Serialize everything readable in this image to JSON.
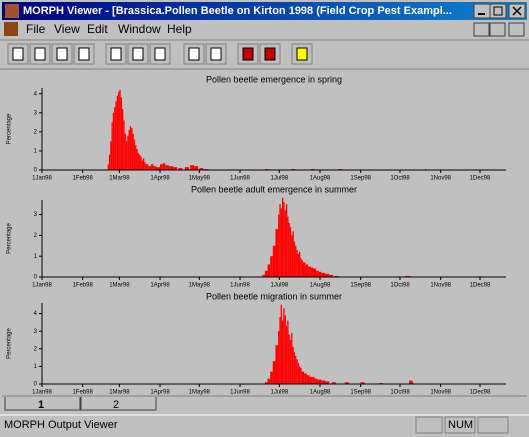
{
  "window": {
    "title": "MORPH Viewer - [Brassica.Pollen Beetle on Kirton 1998 (Field Crop Pest Exampl...",
    "menu": [
      "File",
      "View",
      "Edit",
      "Window",
      "Help"
    ],
    "tabs": [
      "1",
      "2"
    ],
    "status": {
      "text": "MORPH Output Viewer",
      "num": "NUM"
    }
  },
  "chart_data": [
    {
      "type": "bar",
      "title": "Pollen beetle emergence in spring",
      "y_label": "Percentage",
      "color": "#ff0000",
      "x": [
        "20Feb98",
        "21Feb98",
        "22Feb98",
        "23Feb98",
        "24Feb98",
        "25Feb98",
        "26Feb98",
        "27Feb98",
        "28Feb98",
        "1Mar98",
        "2Mar98",
        "3Mar98",
        "4Mar98",
        "5Mar98",
        "6Mar98",
        "7Mar98",
        "8Mar98",
        "9Mar98",
        "10Mar98",
        "11Mar98",
        "12Mar98",
        "13Mar98",
        "14Mar98",
        "15Mar98",
        "16Mar98",
        "17Mar98",
        "18Mar98",
        "19Mar98",
        "20Mar98",
        "21Mar98",
        "23Mar98",
        "25Mar98",
        "27Mar98",
        "29Mar98",
        "1Apr98",
        "3Apr98",
        "5Apr98",
        "8Apr98",
        "11Apr98",
        "15Apr98",
        "20Apr98",
        "24Apr98",
        "27Apr98",
        "1May98",
        "5May98",
        "20Jun98",
        "10Jul98",
        "25Jul98",
        "15Aug98",
        "20Oct98"
      ],
      "values": [
        0.3,
        0.8,
        1.5,
        2.5,
        3.0,
        3.3,
        3.6,
        3.9,
        4.1,
        4.2,
        3.8,
        3.2,
        2.6,
        1.9,
        1.5,
        1.8,
        2.1,
        2.3,
        2.2,
        1.9,
        1.6,
        1.3,
        1.1,
        0.9,
        0.8,
        0.7,
        0.5,
        0.6,
        0.4,
        0.3,
        0.2,
        0.3,
        0.2,
        0.15,
        0.3,
        0.35,
        0.25,
        0.2,
        0.15,
        0.1,
        0.15,
        0.25,
        0.2,
        0.1,
        0.05,
        0.05,
        0.05,
        0.05,
        0.05,
        0.05
      ],
      "ylim": [
        0,
        4.3
      ],
      "yticks": [
        0,
        1,
        2,
        3,
        4
      ],
      "xticks": [
        "1Jan98",
        "1Feb98",
        "1Mar98",
        "1Apr98",
        "1May98",
        "1Jun98",
        "1Jul98",
        "1Aug98",
        "1Sep98",
        "1Oct98",
        "1Nov98",
        "1Dec98"
      ]
    },
    {
      "type": "bar",
      "title": "Pollen beetle adult emergence in summer",
      "y_label": "Percentage",
      "color": "#ff0000",
      "x": [
        "18Jun98",
        "20Jun98",
        "22Jun98",
        "24Jun98",
        "26Jun98",
        "28Jun98",
        "30Jun98",
        "1Jul98",
        "2Jul98",
        "3Jul98",
        "4Jul98",
        "5Jul98",
        "6Jul98",
        "7Jul98",
        "8Jul98",
        "9Jul98",
        "10Jul98",
        "11Jul98",
        "12Jul98",
        "13Jul98",
        "14Jul98",
        "15Jul98",
        "16Jul98",
        "17Jul98",
        "18Jul98",
        "19Jul98",
        "21Jul98",
        "23Jul98",
        "25Jul98",
        "27Jul98",
        "29Jul98",
        "31Jul98",
        "2Aug98",
        "5Aug98",
        "8Aug98",
        "12Aug98",
        "5Oct98",
        "8Oct98"
      ],
      "values": [
        0.1,
        0.3,
        0.6,
        1.0,
        1.5,
        2.3,
        3.0,
        3.5,
        3.3,
        3.8,
        3.6,
        3.2,
        3.5,
        2.9,
        2.6,
        2.4,
        2.0,
        2.2,
        1.7,
        1.5,
        1.3,
        1.1,
        1.2,
        0.9,
        0.8,
        0.7,
        0.6,
        0.5,
        0.45,
        0.4,
        0.3,
        0.25,
        0.2,
        0.15,
        0.1,
        0.05,
        0.05,
        0.05
      ],
      "ylim": [
        0,
        3.7
      ],
      "yticks": [
        0,
        1,
        2,
        3
      ],
      "xticks": [
        "1Jan98",
        "1Feb98",
        "1Mar98",
        "1Apr98",
        "1May98",
        "1Jun98",
        "1Jul98",
        "1Aug98",
        "1Sep98",
        "1Oct98",
        "1Nov98",
        "1Dec98"
      ]
    },
    {
      "type": "bar",
      "title": "Pollen beetle migration in summer",
      "y_label": "Percentage",
      "color": "#ff0000",
      "x": [
        "20Jun98",
        "22Jun98",
        "24Jun98",
        "26Jun98",
        "28Jun98",
        "30Jun98",
        "1Jul98",
        "2Jul98",
        "3Jul98",
        "4Jul98",
        "5Jul98",
        "6Jul98",
        "7Jul98",
        "8Jul98",
        "9Jul98",
        "10Jul98",
        "11Jul98",
        "12Jul98",
        "13Jul98",
        "14Jul98",
        "15Jul98",
        "16Jul98",
        "17Jul98",
        "18Jul98",
        "20Jul98",
        "22Jul98",
        "24Jul98",
        "26Jul98",
        "28Jul98",
        "30Jul98",
        "2Aug98",
        "5Aug98",
        "10Aug98",
        "20Aug98",
        "1Sep98",
        "15Sep98",
        "8Oct98",
        "10Oct98"
      ],
      "values": [
        0.1,
        0.3,
        0.7,
        1.3,
        2.2,
        3.0,
        3.8,
        4.5,
        3.6,
        4.3,
        3.9,
        3.3,
        3.6,
        2.8,
        2.5,
        2.9,
        2.1,
        1.8,
        1.6,
        1.4,
        1.2,
        1.0,
        0.9,
        0.7,
        0.6,
        0.5,
        0.4,
        0.4,
        0.3,
        0.25,
        0.2,
        0.15,
        0.1,
        0.1,
        0.1,
        0.05,
        0.2,
        0.15
      ],
      "ylim": [
        0,
        4.6
      ],
      "yticks": [
        0,
        1,
        2,
        3,
        4
      ],
      "xticks": [
        "1Jan98",
        "1Feb98",
        "1Mar98",
        "1Apr98",
        "1May98",
        "1Jun98",
        "1Jul98",
        "1Aug98",
        "1Sep98",
        "1Oct98",
        "1Nov98",
        "1Dec98"
      ]
    }
  ]
}
